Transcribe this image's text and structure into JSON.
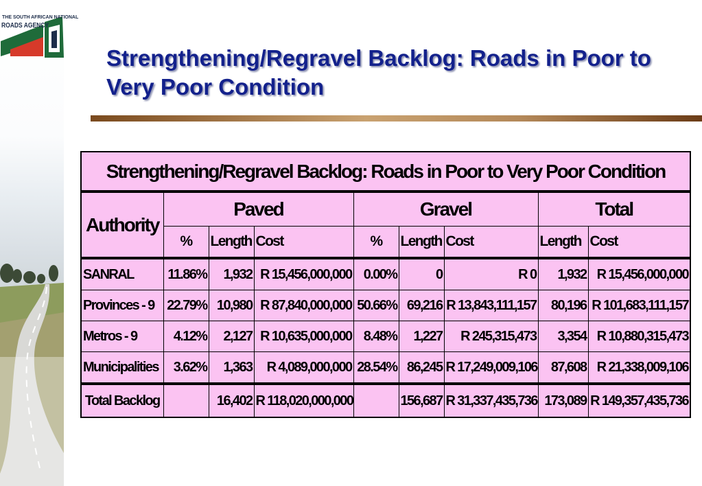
{
  "logo": {
    "line1": "THE SOUTH AFRICAN NATIONAL",
    "line2": "ROADS AGENCY",
    "colors": {
      "green": "#1f6b3a",
      "red": "#d63a2a",
      "navy": "#1d2d4a"
    }
  },
  "title": "Strengthening/Regravel Backlog: Roads in Poor to Very Poor Condition",
  "table": {
    "caption": "Strengthening/Regravel Backlog: Roads in Poor to Very Poor Condition",
    "authority_header": "Authority",
    "groups": [
      "Paved",
      "Gravel",
      "Total"
    ],
    "subheaders": {
      "paved": [
        "%",
        "Length",
        "Cost"
      ],
      "gravel": [
        "%",
        "Length",
        "Cost"
      ],
      "total": [
        "Length",
        "Cost"
      ]
    },
    "rows": [
      {
        "authority": "SANRAL",
        "paved_pct": "11.86%",
        "paved_len": "1,932",
        "paved_cost": "R 15,456,000,000",
        "gravel_pct": "0.00%",
        "gravel_len": "0",
        "gravel_cost": "R 0",
        "total_len": "1,932",
        "total_cost": "R 15,456,000,000"
      },
      {
        "authority": "Provinces - 9",
        "paved_pct": "22.79%",
        "paved_len": "10,980",
        "paved_cost": "R 87,840,000,000",
        "gravel_pct": "50.66%",
        "gravel_len": "69,216",
        "gravel_cost": "R 13,843,111,157",
        "total_len": "80,196",
        "total_cost": "R 101,683,111,157"
      },
      {
        "authority": "Metros - 9",
        "paved_pct": "4.12%",
        "paved_len": "2,127",
        "paved_cost": "R 10,635,000,000",
        "gravel_pct": "8.48%",
        "gravel_len": "1,227",
        "gravel_cost": "R 245,315,473",
        "total_len": "3,354",
        "total_cost": "R 10,880,315,473"
      },
      {
        "authority": "Municipalities",
        "paved_pct": "3.62%",
        "paved_len": "1,363",
        "paved_cost": "R 4,089,000,000",
        "gravel_pct": "28.54%",
        "gravel_len": "86,245",
        "gravel_cost": "R 17,249,009,106",
        "total_len": "87,608",
        "total_cost": "R 21,338,009,106"
      }
    ],
    "total_row": {
      "authority": "Total Backlog",
      "paved_pct": "",
      "paved_len": "16,402",
      "paved_cost": "R 118,020,000,000",
      "gravel_pct": "",
      "gravel_len": "156,687",
      "gravel_cost": "R 31,337,435,736",
      "total_len": "173,089",
      "total_cost": "R 149,357,435,736"
    },
    "background": "#fbc3f2"
  },
  "colors": {
    "title": "#13218c",
    "rule_start": "#7a4a1e",
    "rule_end": "#6b3c17"
  }
}
